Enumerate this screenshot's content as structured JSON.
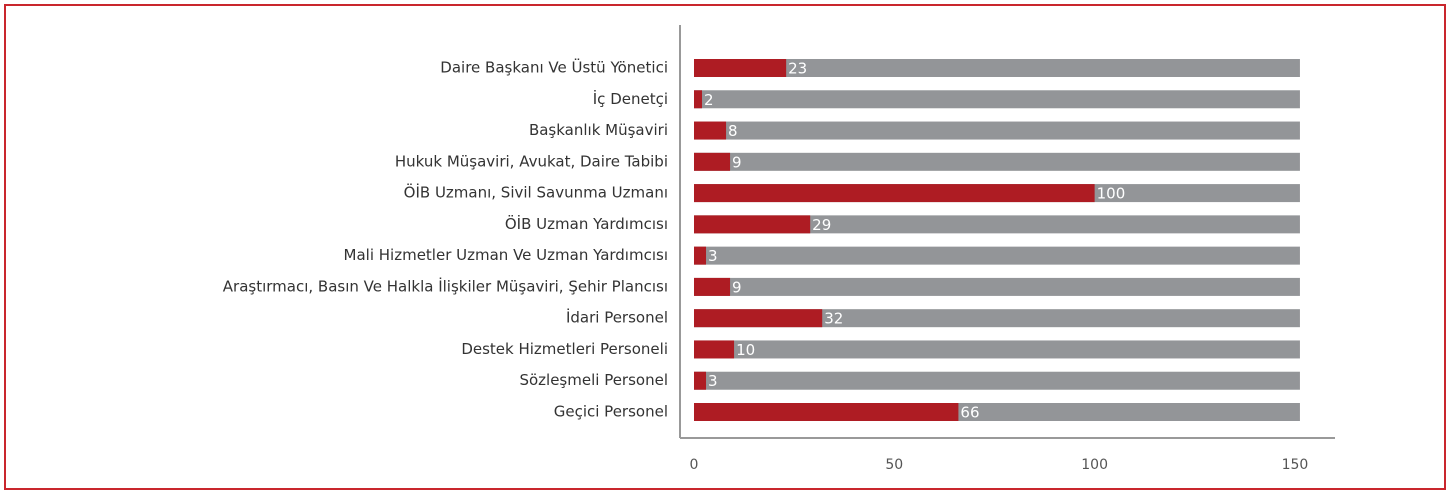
{
  "chart_data": {
    "type": "barh",
    "categories": [
      "Daire Başkanı Ve Üstü Yönetici",
      "İç Denetçi",
      "Başkanlık Müşaviri",
      "Hukuk Müşaviri, Avukat, Daire Tabibi",
      "ÖİB Uzmanı, Sivil Savunma Uzmanı",
      "ÖİB Uzman Yardımcısı",
      "Mali Hizmetler Uzman Ve Uzman Yardımcısı",
      "Araştırmacı, Basın Ve Halkla İlişkiler Müşaviri, Şehir Plancısı",
      "İdari Personel",
      "Destek Hizmetleri Personeli",
      "Sözleşmeli Personel",
      "Geçici Personel"
    ],
    "values": [
      23,
      2,
      8,
      9,
      100,
      29,
      3,
      9,
      32,
      10,
      3,
      66
    ],
    "color": "#ae1c23",
    "track_color": "#939598",
    "xlim": [
      0,
      160
    ],
    "xticks": [
      0,
      50,
      100,
      150
    ]
  }
}
